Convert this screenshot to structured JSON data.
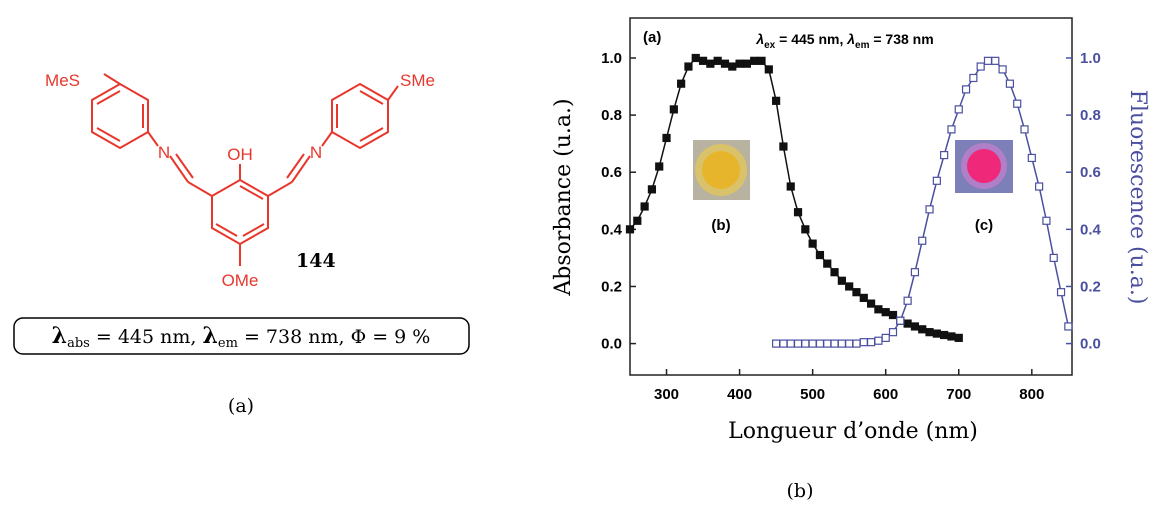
{
  "structure": {
    "labels": [
      "MeS",
      "SMe",
      "OH",
      "N",
      "N",
      "OMe"
    ],
    "compound": "144",
    "properties": [
      "λ",
      "abs",
      " = 445 nm, ",
      "λ",
      "em",
      " = 738 nm, Φ = 9 %"
    ],
    "caption": "(a)"
  },
  "chart_data": {
    "type": "line",
    "title": "(a)",
    "annotation": [
      "λ",
      "ex",
      " = 445 nm, ",
      "λ",
      "em",
      " = 738 nm"
    ],
    "inset_labels": [
      "(b)",
      "(c)"
    ],
    "xlabel": "Longueur d’onde (nm)",
    "ylabel": "Absorbance (u.a.)",
    "y2label": "Fluorescence (u.a.)",
    "caption": "(b)",
    "xlim": [
      250,
      855
    ],
    "xticks": [
      300,
      400,
      500,
      600,
      700,
      800
    ],
    "ylim": [
      -0.11,
      1.14
    ],
    "yticks": [
      {
        "value": 0,
        "label": "0.0"
      },
      0.2,
      0.4,
      0.6,
      0.8,
      {
        "value": 1,
        "label": "1.0"
      }
    ],
    "y2lim": [
      -0.11,
      1.14
    ],
    "y2ticks": [
      {
        "value": 0,
        "label": "0.0"
      },
      0.2,
      0.4,
      0.6,
      0.8,
      {
        "value": 1,
        "label": "1.0"
      }
    ],
    "series": [
      {
        "name": "Absorbance",
        "color": "#111111",
        "marker": "filled-square",
        "x": [
          250,
          260,
          270,
          280,
          290,
          300,
          310,
          320,
          330,
          340,
          350,
          360,
          370,
          380,
          390,
          400,
          410,
          420,
          430,
          440,
          450,
          460,
          470,
          480,
          490,
          500,
          510,
          520,
          530,
          540,
          550,
          560,
          570,
          580,
          590,
          600,
          610,
          620,
          630,
          640,
          650,
          660,
          670,
          680,
          690,
          700
        ],
        "values": [
          0.4,
          0.43,
          0.48,
          0.54,
          0.62,
          0.72,
          0.82,
          0.91,
          0.97,
          1.0,
          0.99,
          0.98,
          0.99,
          0.98,
          0.97,
          0.98,
          0.98,
          0.99,
          0.99,
          0.96,
          0.85,
          0.69,
          0.55,
          0.46,
          0.4,
          0.35,
          0.31,
          0.28,
          0.25,
          0.22,
          0.2,
          0.18,
          0.16,
          0.14,
          0.12,
          0.11,
          0.1,
          0.08,
          0.07,
          0.06,
          0.05,
          0.04,
          0.035,
          0.03,
          0.025,
          0.02
        ]
      },
      {
        "name": "Fluorescence",
        "color": "#4a4fa0",
        "marker": "open-square",
        "axis": "y2",
        "x": [
          450,
          460,
          470,
          480,
          490,
          500,
          510,
          520,
          530,
          540,
          550,
          560,
          570,
          580,
          590,
          600,
          610,
          620,
          630,
          640,
          650,
          660,
          670,
          680,
          690,
          700,
          710,
          720,
          730,
          740,
          750,
          760,
          770,
          780,
          790,
          800,
          810,
          820,
          830,
          840,
          850
        ],
        "values": [
          0,
          0,
          0,
          0,
          0,
          0,
          0,
          0,
          0,
          0,
          0,
          0,
          0.005,
          0.005,
          0.01,
          0.02,
          0.04,
          0.08,
          0.15,
          0.25,
          0.36,
          0.47,
          0.57,
          0.66,
          0.75,
          0.82,
          0.89,
          0.93,
          0.97,
          0.99,
          0.99,
          0.96,
          0.91,
          0.84,
          0.75,
          0.65,
          0.55,
          0.43,
          0.3,
          0.18,
          0.06
        ]
      }
    ]
  }
}
